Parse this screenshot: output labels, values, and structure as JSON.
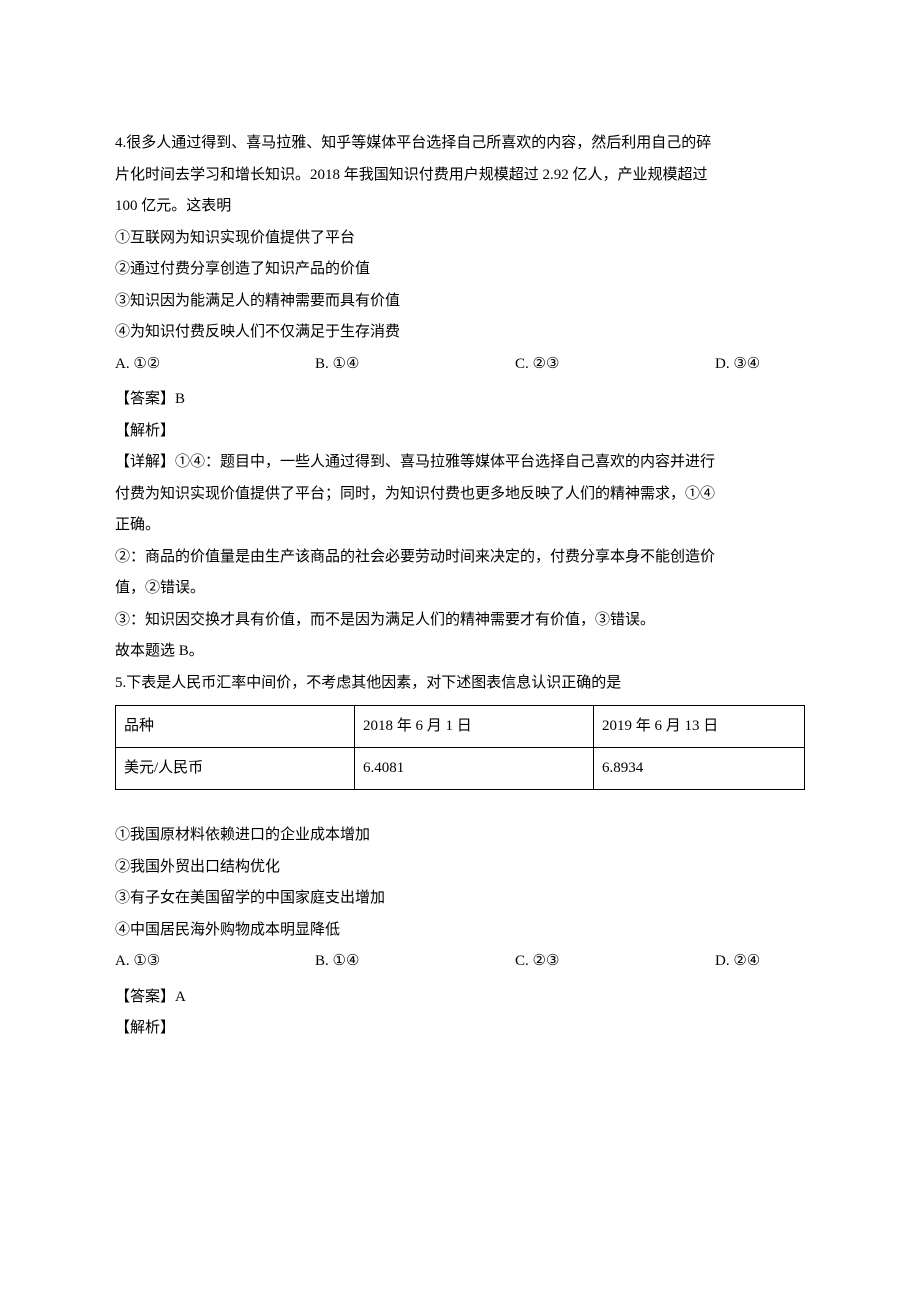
{
  "q4": {
    "stem_l1": "4.很多人通过得到、喜马拉雅、知乎等媒体平台选择自己所喜欢的内容，然后利用自己的碎",
    "stem_l2": "片化时间去学习和增长知识。2018 年我国知识付费用户规模超过 2.92 亿人，产业规模超过",
    "stem_l3": "100 亿元。这表明",
    "s1": "①互联网为知识实现价值提供了平台",
    "s2": "②通过付费分享创造了知识产品的价值",
    "s3": "③知识因为能满足人的精神需要而具有价值",
    "s4": "④为知识付费反映人们不仅满足于生存消费",
    "optA": "A. ①②",
    "optB": "B. ①④",
    "optC": "C. ②③",
    "optD": "D. ③④",
    "ans": "【答案】B",
    "jiexi": "【解析】",
    "detail_l1": "【详解】①④：题目中，一些人通过得到、喜马拉雅等媒体平台选择自己喜欢的内容并进行",
    "detail_l2": "付费为知识实现价值提供了平台；同时，为知识付费也更多地反映了人们的精神需求，①④",
    "detail_l3": "正确。",
    "detail_l4": "②：商品的价值量是由生产该商品的社会必要劳动时间来决定的，付费分享本身不能创造价",
    "detail_l5": "值，②错误。",
    "detail_l6": "③：知识因交换才具有价值，而不是因为满足人们的精神需要才有价值，③错误。",
    "detail_l7": "故本题选 B。"
  },
  "q5": {
    "stem": "5.下表是人民币汇率中间价，不考虑其他因素，对下述图表信息认识正确的是",
    "table": {
      "columns": [
        "品种",
        "2018 年 6 月 1 日",
        "2019 年 6 月 13 日"
      ],
      "row1": [
        "美元/人民币",
        "6.4081",
        "6.8934"
      ]
    },
    "s1": "①我国原材料依赖进口的企业成本增加",
    "s2": "②我国外贸出口结构优化",
    "s3": "③有子女在美国留学的中国家庭支出增加",
    "s4": "④中国居民海外购物成本明显降低",
    "optA": "A. ①③",
    "optB": "B. ①④",
    "optC": "C. ②③",
    "optD": "D. ②④",
    "ans": "【答案】A",
    "jiexi": "【解析】"
  }
}
